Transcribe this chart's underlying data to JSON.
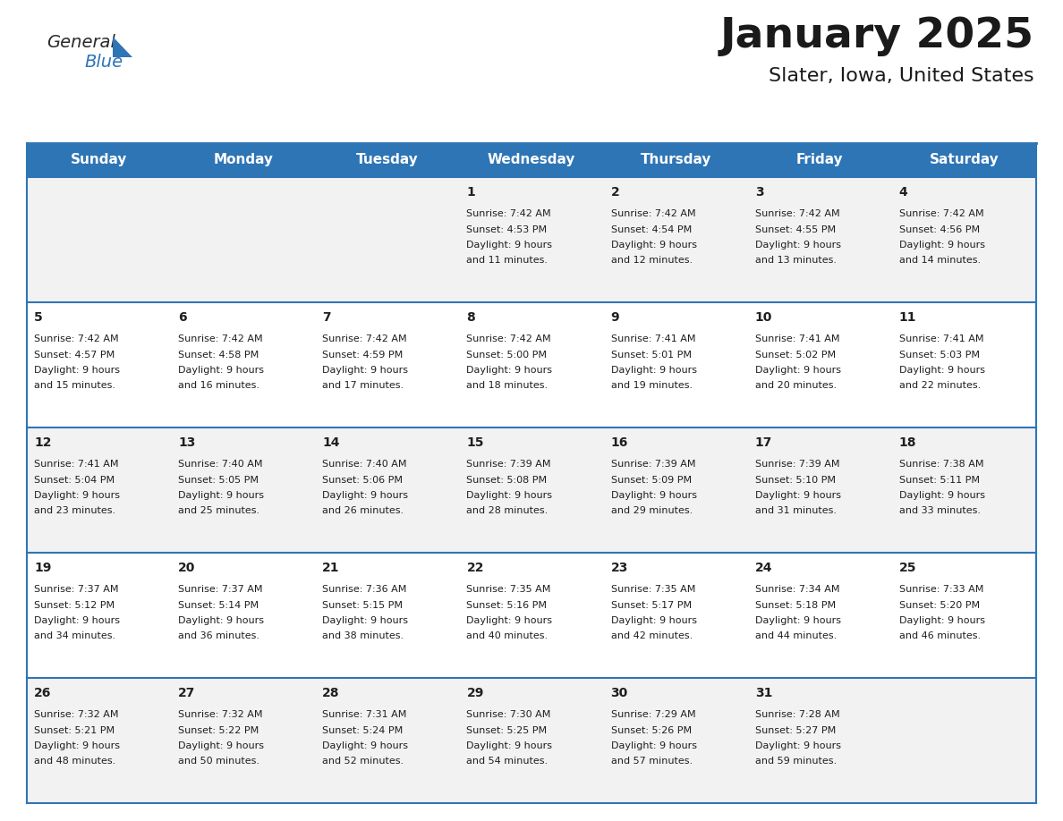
{
  "title": "January 2025",
  "subtitle": "Slater, Iowa, United States",
  "header_bg": "#2E75B6",
  "header_text_color": "#FFFFFF",
  "day_names": [
    "Sunday",
    "Monday",
    "Tuesday",
    "Wednesday",
    "Thursday",
    "Friday",
    "Saturday"
  ],
  "row_bg_even": "#F2F2F2",
  "row_bg_odd": "#FFFFFF",
  "cell_border_color": "#2E75B6",
  "text_color": "#1F1F1F",
  "logo_color1": "#2B2B2B",
  "logo_color2": "#2E75B6",
  "logo_tri_color": "#2E75B6",
  "days": [
    {
      "day": 1,
      "col": 3,
      "row": 0,
      "sunrise": "7:42 AM",
      "sunset": "4:53 PM",
      "dl1": "Daylight: 9 hours",
      "dl2": "and 11 minutes."
    },
    {
      "day": 2,
      "col": 4,
      "row": 0,
      "sunrise": "7:42 AM",
      "sunset": "4:54 PM",
      "dl1": "Daylight: 9 hours",
      "dl2": "and 12 minutes."
    },
    {
      "day": 3,
      "col": 5,
      "row": 0,
      "sunrise": "7:42 AM",
      "sunset": "4:55 PM",
      "dl1": "Daylight: 9 hours",
      "dl2": "and 13 minutes."
    },
    {
      "day": 4,
      "col": 6,
      "row": 0,
      "sunrise": "7:42 AM",
      "sunset": "4:56 PM",
      "dl1": "Daylight: 9 hours",
      "dl2": "and 14 minutes."
    },
    {
      "day": 5,
      "col": 0,
      "row": 1,
      "sunrise": "7:42 AM",
      "sunset": "4:57 PM",
      "dl1": "Daylight: 9 hours",
      "dl2": "and 15 minutes."
    },
    {
      "day": 6,
      "col": 1,
      "row": 1,
      "sunrise": "7:42 AM",
      "sunset": "4:58 PM",
      "dl1": "Daylight: 9 hours",
      "dl2": "and 16 minutes."
    },
    {
      "day": 7,
      "col": 2,
      "row": 1,
      "sunrise": "7:42 AM",
      "sunset": "4:59 PM",
      "dl1": "Daylight: 9 hours",
      "dl2": "and 17 minutes."
    },
    {
      "day": 8,
      "col": 3,
      "row": 1,
      "sunrise": "7:42 AM",
      "sunset": "5:00 PM",
      "dl1": "Daylight: 9 hours",
      "dl2": "and 18 minutes."
    },
    {
      "day": 9,
      "col": 4,
      "row": 1,
      "sunrise": "7:41 AM",
      "sunset": "5:01 PM",
      "dl1": "Daylight: 9 hours",
      "dl2": "and 19 minutes."
    },
    {
      "day": 10,
      "col": 5,
      "row": 1,
      "sunrise": "7:41 AM",
      "sunset": "5:02 PM",
      "dl1": "Daylight: 9 hours",
      "dl2": "and 20 minutes."
    },
    {
      "day": 11,
      "col": 6,
      "row": 1,
      "sunrise": "7:41 AM",
      "sunset": "5:03 PM",
      "dl1": "Daylight: 9 hours",
      "dl2": "and 22 minutes."
    },
    {
      "day": 12,
      "col": 0,
      "row": 2,
      "sunrise": "7:41 AM",
      "sunset": "5:04 PM",
      "dl1": "Daylight: 9 hours",
      "dl2": "and 23 minutes."
    },
    {
      "day": 13,
      "col": 1,
      "row": 2,
      "sunrise": "7:40 AM",
      "sunset": "5:05 PM",
      "dl1": "Daylight: 9 hours",
      "dl2": "and 25 minutes."
    },
    {
      "day": 14,
      "col": 2,
      "row": 2,
      "sunrise": "7:40 AM",
      "sunset": "5:06 PM",
      "dl1": "Daylight: 9 hours",
      "dl2": "and 26 minutes."
    },
    {
      "day": 15,
      "col": 3,
      "row": 2,
      "sunrise": "7:39 AM",
      "sunset": "5:08 PM",
      "dl1": "Daylight: 9 hours",
      "dl2": "and 28 minutes."
    },
    {
      "day": 16,
      "col": 4,
      "row": 2,
      "sunrise": "7:39 AM",
      "sunset": "5:09 PM",
      "dl1": "Daylight: 9 hours",
      "dl2": "and 29 minutes."
    },
    {
      "day": 17,
      "col": 5,
      "row": 2,
      "sunrise": "7:39 AM",
      "sunset": "5:10 PM",
      "dl1": "Daylight: 9 hours",
      "dl2": "and 31 minutes."
    },
    {
      "day": 18,
      "col": 6,
      "row": 2,
      "sunrise": "7:38 AM",
      "sunset": "5:11 PM",
      "dl1": "Daylight: 9 hours",
      "dl2": "and 33 minutes."
    },
    {
      "day": 19,
      "col": 0,
      "row": 3,
      "sunrise": "7:37 AM",
      "sunset": "5:12 PM",
      "dl1": "Daylight: 9 hours",
      "dl2": "and 34 minutes."
    },
    {
      "day": 20,
      "col": 1,
      "row": 3,
      "sunrise": "7:37 AM",
      "sunset": "5:14 PM",
      "dl1": "Daylight: 9 hours",
      "dl2": "and 36 minutes."
    },
    {
      "day": 21,
      "col": 2,
      "row": 3,
      "sunrise": "7:36 AM",
      "sunset": "5:15 PM",
      "dl1": "Daylight: 9 hours",
      "dl2": "and 38 minutes."
    },
    {
      "day": 22,
      "col": 3,
      "row": 3,
      "sunrise": "7:35 AM",
      "sunset": "5:16 PM",
      "dl1": "Daylight: 9 hours",
      "dl2": "and 40 minutes."
    },
    {
      "day": 23,
      "col": 4,
      "row": 3,
      "sunrise": "7:35 AM",
      "sunset": "5:17 PM",
      "dl1": "Daylight: 9 hours",
      "dl2": "and 42 minutes."
    },
    {
      "day": 24,
      "col": 5,
      "row": 3,
      "sunrise": "7:34 AM",
      "sunset": "5:18 PM",
      "dl1": "Daylight: 9 hours",
      "dl2": "and 44 minutes."
    },
    {
      "day": 25,
      "col": 6,
      "row": 3,
      "sunrise": "7:33 AM",
      "sunset": "5:20 PM",
      "dl1": "Daylight: 9 hours",
      "dl2": "and 46 minutes."
    },
    {
      "day": 26,
      "col": 0,
      "row": 4,
      "sunrise": "7:32 AM",
      "sunset": "5:21 PM",
      "dl1": "Daylight: 9 hours",
      "dl2": "and 48 minutes."
    },
    {
      "day": 27,
      "col": 1,
      "row": 4,
      "sunrise": "7:32 AM",
      "sunset": "5:22 PM",
      "dl1": "Daylight: 9 hours",
      "dl2": "and 50 minutes."
    },
    {
      "day": 28,
      "col": 2,
      "row": 4,
      "sunrise": "7:31 AM",
      "sunset": "5:24 PM",
      "dl1": "Daylight: 9 hours",
      "dl2": "and 52 minutes."
    },
    {
      "day": 29,
      "col": 3,
      "row": 4,
      "sunrise": "7:30 AM",
      "sunset": "5:25 PM",
      "dl1": "Daylight: 9 hours",
      "dl2": "and 54 minutes."
    },
    {
      "day": 30,
      "col": 4,
      "row": 4,
      "sunrise": "7:29 AM",
      "sunset": "5:26 PM",
      "dl1": "Daylight: 9 hours",
      "dl2": "and 57 minutes."
    },
    {
      "day": 31,
      "col": 5,
      "row": 4,
      "sunrise": "7:28 AM",
      "sunset": "5:27 PM",
      "dl1": "Daylight: 9 hours",
      "dl2": "and 59 minutes."
    }
  ]
}
